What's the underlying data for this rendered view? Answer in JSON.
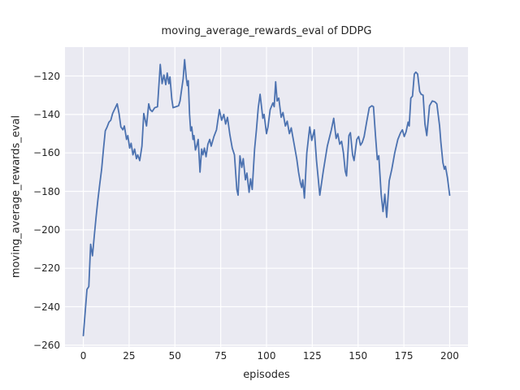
{
  "figure": {
    "background": "#ffffff",
    "axes_background": "#eaeaf2",
    "grid_color": "#ffffff",
    "text_color": "#262626"
  },
  "chart_data": {
    "type": "line",
    "title": "moving_average_rewards_eval of DDPG",
    "xlabel": "episodes",
    "ylabel": "moving_average_rewards_eval",
    "xlim": [
      -10,
      210
    ],
    "ylim": [
      -260.9,
      -105.0
    ],
    "grid": true,
    "legend": false,
    "x_ticks": [
      0,
      25,
      50,
      75,
      100,
      125,
      150,
      175,
      200
    ],
    "x_tick_labels": [
      "0",
      "25",
      "50",
      "75",
      "100",
      "125",
      "150",
      "175",
      "200"
    ],
    "y_ticks": [
      -120,
      -140,
      -160,
      -180,
      -200,
      -220,
      -240,
      -260
    ],
    "y_tick_labels": [
      "−120",
      "−140",
      "−160",
      "−180",
      "−200",
      "−220",
      "−240",
      "−260"
    ],
    "series": [
      {
        "name": "moving_average_rewards_eval",
        "color": "#4c72b0",
        "points": [
          [
            0,
            -255
          ],
          [
            1,
            -243
          ],
          [
            2,
            -231
          ],
          [
            3,
            -229.5
          ],
          [
            4,
            -207.5
          ],
          [
            5,
            -213.5
          ],
          [
            6,
            -203
          ],
          [
            7,
            -193
          ],
          [
            8,
            -184
          ],
          [
            9,
            -176
          ],
          [
            10,
            -168.5
          ],
          [
            11,
            -158
          ],
          [
            12,
            -148.5
          ],
          [
            13,
            -146.5
          ],
          [
            14,
            -144
          ],
          [
            15,
            -143
          ],
          [
            16,
            -139.5
          ],
          [
            17,
            -137.5
          ],
          [
            18.5,
            -134.5
          ],
          [
            19.5,
            -139.5
          ],
          [
            20.5,
            -146.5
          ],
          [
            21.6,
            -148
          ],
          [
            22.4,
            -146
          ],
          [
            23.6,
            -153
          ],
          [
            24.3,
            -151
          ],
          [
            25.3,
            -157.5
          ],
          [
            26.1,
            -155
          ],
          [
            27.1,
            -161
          ],
          [
            28,
            -158
          ],
          [
            29,
            -163
          ],
          [
            29.7,
            -161
          ],
          [
            30.8,
            -164
          ],
          [
            32,
            -156.5
          ],
          [
            33,
            -139.5
          ],
          [
            34.5,
            -146
          ],
          [
            35.7,
            -134.5
          ],
          [
            36.5,
            -137.5
          ],
          [
            37.6,
            -138.5
          ],
          [
            39,
            -136.5
          ],
          [
            40.5,
            -136
          ],
          [
            42,
            -114
          ],
          [
            43,
            -124
          ],
          [
            44,
            -119.5
          ],
          [
            45,
            -124.5
          ],
          [
            45.8,
            -118.5
          ],
          [
            46.7,
            -124
          ],
          [
            47.3,
            -120.5
          ],
          [
            48.3,
            -132
          ],
          [
            49,
            -136.5
          ],
          [
            50.5,
            -136
          ],
          [
            52,
            -135.5
          ],
          [
            52.8,
            -133
          ],
          [
            53.6,
            -127.5
          ],
          [
            54.5,
            -121.5
          ],
          [
            55.3,
            -111.5
          ],
          [
            56.2,
            -121
          ],
          [
            56.8,
            -125
          ],
          [
            57.3,
            -122.5
          ],
          [
            58,
            -140
          ],
          [
            58.6,
            -148.5
          ],
          [
            59.2,
            -146.5
          ],
          [
            59.9,
            -153
          ],
          [
            60.4,
            -151
          ],
          [
            61.2,
            -158.5
          ],
          [
            62,
            -156
          ],
          [
            62.7,
            -153
          ],
          [
            63.7,
            -170
          ],
          [
            64.6,
            -158
          ],
          [
            65.3,
            -161
          ],
          [
            66.1,
            -157.5
          ],
          [
            67,
            -162
          ],
          [
            68,
            -155.5
          ],
          [
            69,
            -153
          ],
          [
            69.8,
            -156.5
          ],
          [
            71.3,
            -151.5
          ],
          [
            72.7,
            -148
          ],
          [
            74.3,
            -137.5
          ],
          [
            75.5,
            -143
          ],
          [
            76.7,
            -140
          ],
          [
            77.7,
            -145
          ],
          [
            78.7,
            -141.5
          ],
          [
            80,
            -150.5
          ],
          [
            81.3,
            -157.5
          ],
          [
            82.5,
            -161
          ],
          [
            83.8,
            -179
          ],
          [
            84.5,
            -182
          ],
          [
            85.5,
            -161.5
          ],
          [
            86.5,
            -167.5
          ],
          [
            87.3,
            -163
          ],
          [
            88.5,
            -174
          ],
          [
            89.3,
            -170.5
          ],
          [
            90.5,
            -180.5
          ],
          [
            91.3,
            -173.5
          ],
          [
            92.2,
            -179
          ],
          [
            93.5,
            -158
          ],
          [
            94.5,
            -148
          ],
          [
            95.5,
            -136.5
          ],
          [
            96.5,
            -129.5
          ],
          [
            98,
            -142
          ],
          [
            98.7,
            -140
          ],
          [
            100,
            -150
          ],
          [
            100.8,
            -146.5
          ],
          [
            102,
            -137.5
          ],
          [
            103.5,
            -134
          ],
          [
            104.2,
            -136
          ],
          [
            105,
            -123
          ],
          [
            105.8,
            -133
          ],
          [
            106.7,
            -131.5
          ],
          [
            108,
            -141.5
          ],
          [
            109,
            -139
          ],
          [
            110.3,
            -146
          ],
          [
            111.3,
            -143.5
          ],
          [
            112.5,
            -150
          ],
          [
            113.5,
            -147
          ],
          [
            115,
            -155
          ],
          [
            116.5,
            -163
          ],
          [
            117.5,
            -170
          ],
          [
            118.5,
            -175.5
          ],
          [
            119.2,
            -178
          ],
          [
            119.8,
            -174
          ],
          [
            120.7,
            -183.5
          ],
          [
            122,
            -160
          ],
          [
            123.6,
            -146.5
          ],
          [
            124.7,
            -153.5
          ],
          [
            126.1,
            -148
          ],
          [
            127.3,
            -164
          ],
          [
            128.2,
            -173
          ],
          [
            129.1,
            -182
          ],
          [
            131,
            -169.5
          ],
          [
            133.2,
            -156.5
          ],
          [
            135.4,
            -148
          ],
          [
            136.7,
            -142
          ],
          [
            138,
            -152.5
          ],
          [
            138.9,
            -150
          ],
          [
            140,
            -155.5
          ],
          [
            141,
            -154
          ],
          [
            142,
            -160
          ],
          [
            143,
            -169.5
          ],
          [
            143.7,
            -172
          ],
          [
            145,
            -151
          ],
          [
            145.8,
            -149.5
          ],
          [
            147,
            -161
          ],
          [
            147.8,
            -164
          ],
          [
            149.3,
            -153
          ],
          [
            150.3,
            -151.5
          ],
          [
            151.3,
            -156
          ],
          [
            152.3,
            -154.5
          ],
          [
            153.3,
            -151.5
          ],
          [
            154.7,
            -143.8
          ],
          [
            156.1,
            -136.5
          ],
          [
            157.5,
            -135.5
          ],
          [
            158.4,
            -136
          ],
          [
            159.5,
            -151
          ],
          [
            160.5,
            -163.5
          ],
          [
            161.3,
            -161.5
          ],
          [
            162.6,
            -181.5
          ],
          [
            163.6,
            -190.5
          ],
          [
            164.6,
            -181.5
          ],
          [
            165.6,
            -193.5
          ],
          [
            167,
            -174.5
          ],
          [
            168.4,
            -168.5
          ],
          [
            170,
            -160
          ],
          [
            171.7,
            -153
          ],
          [
            173.2,
            -149.5
          ],
          [
            174.2,
            -148
          ],
          [
            175.2,
            -151.5
          ],
          [
            176.2,
            -149
          ],
          [
            177.3,
            -144
          ],
          [
            177.9,
            -146
          ],
          [
            178.8,
            -131.5
          ],
          [
            179.7,
            -130.5
          ],
          [
            180.7,
            -119
          ],
          [
            181.5,
            -118
          ],
          [
            182.5,
            -119
          ],
          [
            183.6,
            -128
          ],
          [
            184.4,
            -129.5
          ],
          [
            185.5,
            -130
          ],
          [
            186.5,
            -145
          ],
          [
            187.5,
            -151
          ],
          [
            189,
            -135.5
          ],
          [
            190.5,
            -133
          ],
          [
            192,
            -133.5
          ],
          [
            193,
            -134.5
          ],
          [
            194.5,
            -146
          ],
          [
            195.2,
            -154.5
          ],
          [
            196.3,
            -165
          ],
          [
            197.1,
            -168.5
          ],
          [
            197.7,
            -167
          ],
          [
            198.8,
            -173
          ],
          [
            200,
            -182
          ]
        ]
      }
    ]
  }
}
